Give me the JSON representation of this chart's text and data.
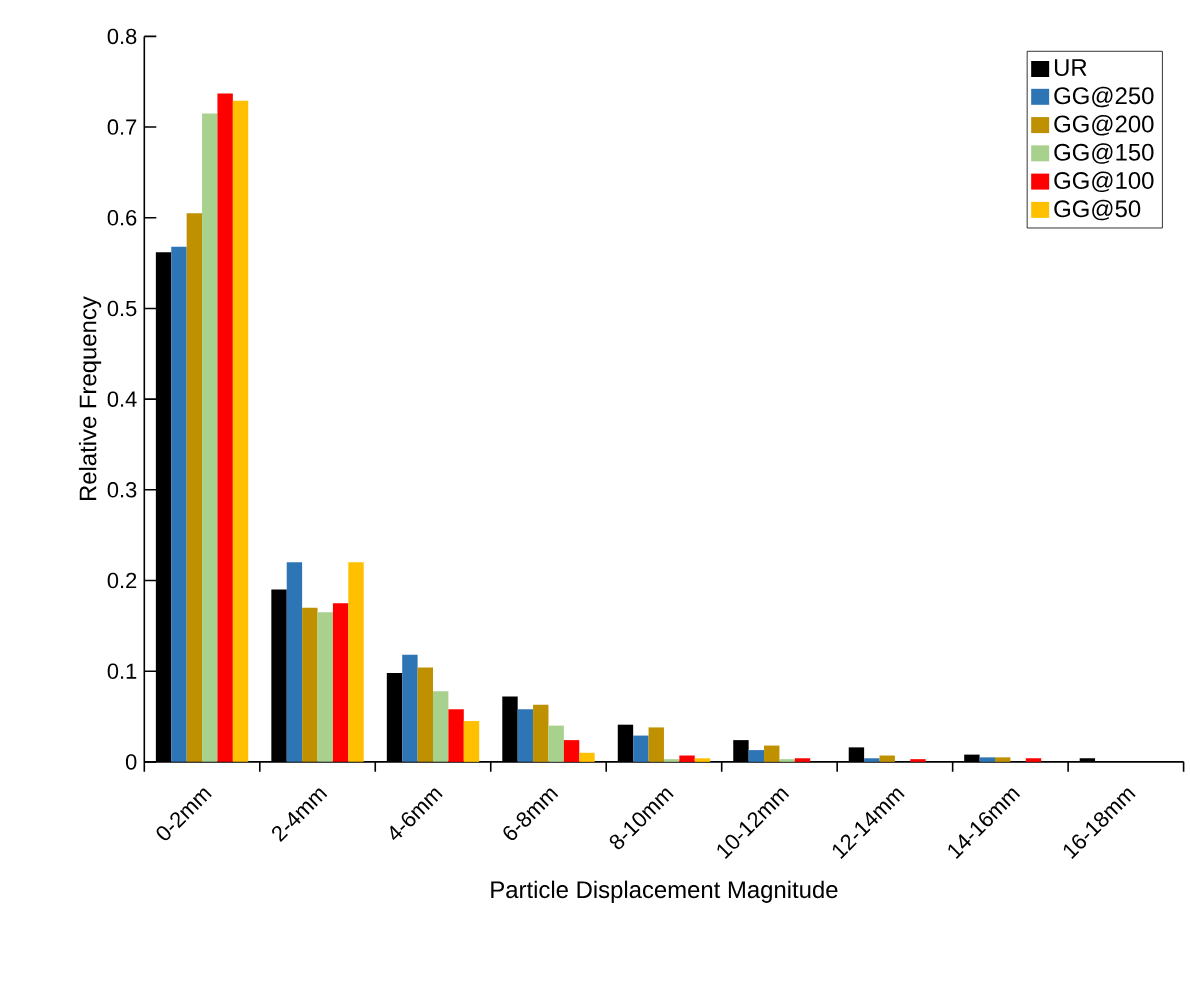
{
  "chart_data": {
    "type": "bar",
    "xlabel": "Particle Displacement Magnitude",
    "ylabel": "Relative Frequency",
    "categories": [
      "0-2mm",
      "2-4mm",
      "4-6mm",
      "6-8mm",
      "8-10mm",
      "10-12mm",
      "12-14mm",
      "14-16mm",
      "16-18mm"
    ],
    "series": [
      {
        "name": "UR",
        "color": "#000000",
        "values": [
          0.562,
          0.19,
          0.098,
          0.072,
          0.041,
          0.024,
          0.016,
          0.008,
          0.004
        ]
      },
      {
        "name": "GG@250",
        "color": "#2e75b6",
        "values": [
          0.568,
          0.22,
          0.118,
          0.058,
          0.029,
          0.013,
          0.004,
          0.005,
          0
        ]
      },
      {
        "name": "GG@200",
        "color": "#bf9000",
        "values": [
          0.605,
          0.17,
          0.104,
          0.063,
          0.038,
          0.018,
          0.007,
          0.005,
          0
        ]
      },
      {
        "name": "GG@150",
        "color": "#a9d18e",
        "values": [
          0.715,
          0.165,
          0.078,
          0.04,
          0.003,
          0.003,
          0,
          0,
          0
        ]
      },
      {
        "name": "GG@100",
        "color": "#ff0000",
        "values": [
          0.737,
          0.175,
          0.058,
          0.024,
          0.007,
          0.004,
          0.003,
          0.004,
          0
        ]
      },
      {
        "name": "GG@50",
        "color": "#ffc000",
        "values": [
          0.729,
          0.22,
          0.045,
          0.01,
          0.004,
          0,
          0,
          0,
          0
        ]
      }
    ],
    "ylim": [
      0,
      0.8
    ],
    "yticks": [
      0,
      0.1,
      0.2,
      0.3,
      0.4,
      0.5,
      0.6,
      0.7,
      0.8
    ],
    "legend": "top right"
  }
}
